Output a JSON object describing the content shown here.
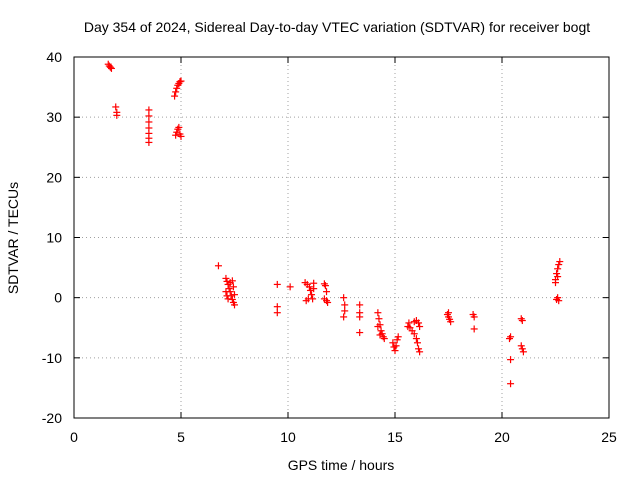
{
  "chart_data": {
    "type": "scatter",
    "title": "Day 354 of 2024, Sidereal Day-to-day VTEC variation (SDTVAR) for receiver bogt",
    "xlabel": "GPS time / hours",
    "ylabel": "SDTVAR / TECUs",
    "xlim": [
      0,
      25
    ],
    "ylim": [
      -20,
      40
    ],
    "xticks": [
      0,
      5,
      10,
      15,
      20,
      25
    ],
    "yticks": [
      -20,
      -10,
      0,
      10,
      20,
      30,
      40
    ],
    "xtick_labels": [
      "0",
      "5",
      "10",
      "15",
      "20",
      "25"
    ],
    "ytick_labels": [
      "-20",
      "-10",
      "0",
      "10",
      "20",
      "30",
      "40"
    ],
    "grid": true,
    "legend": "none",
    "marker": "+",
    "color": "#ff0000",
    "series": [
      {
        "name": "SDTVAR",
        "points": [
          [
            1.6,
            38.8
          ],
          [
            1.65,
            38.5
          ],
          [
            1.7,
            38.3
          ],
          [
            1.75,
            38.1
          ],
          [
            1.95,
            31.7
          ],
          [
            2.0,
            30.8
          ],
          [
            2.0,
            30.3
          ],
          [
            3.5,
            31.2
          ],
          [
            3.5,
            30.2
          ],
          [
            3.5,
            29.2
          ],
          [
            3.5,
            28.2
          ],
          [
            3.5,
            27.3
          ],
          [
            3.5,
            26.5
          ],
          [
            3.5,
            25.8
          ],
          [
            4.7,
            33.5
          ],
          [
            4.75,
            34.2
          ],
          [
            4.8,
            34.8
          ],
          [
            4.85,
            35.3
          ],
          [
            4.9,
            35.6
          ],
          [
            4.95,
            35.9
          ],
          [
            5.0,
            36.0
          ],
          [
            4.75,
            27.0
          ],
          [
            4.8,
            27.5
          ],
          [
            4.85,
            28.0
          ],
          [
            4.9,
            28.3
          ],
          [
            4.95,
            27.2
          ],
          [
            5.0,
            26.8
          ],
          [
            6.75,
            5.3
          ],
          [
            7.1,
            3.2
          ],
          [
            7.15,
            2.7
          ],
          [
            7.2,
            2.2
          ],
          [
            7.25,
            1.5
          ],
          [
            7.3,
            1.0
          ],
          [
            7.35,
            0.3
          ],
          [
            7.4,
            -0.3
          ],
          [
            7.45,
            -0.8
          ],
          [
            7.5,
            -1.2
          ],
          [
            7.1,
            1.0
          ],
          [
            7.15,
            0.3
          ],
          [
            7.2,
            -0.2
          ],
          [
            7.3,
            2.5
          ],
          [
            7.4,
            2.8
          ],
          [
            7.45,
            1.8
          ],
          [
            7.5,
            0.5
          ],
          [
            9.5,
            2.2
          ],
          [
            9.5,
            -1.5
          ],
          [
            9.5,
            -2.5
          ],
          [
            10.1,
            1.8
          ],
          [
            10.8,
            2.5
          ],
          [
            10.9,
            2.2
          ],
          [
            11.0,
            1.8
          ],
          [
            11.05,
            1.2
          ],
          [
            11.1,
            0.5
          ],
          [
            11.15,
            -0.2
          ],
          [
            11.2,
            2.4
          ],
          [
            11.2,
            1.5
          ],
          [
            10.85,
            -0.5
          ],
          [
            10.95,
            -0.2
          ],
          [
            11.7,
            2.3
          ],
          [
            11.75,
            2.0
          ],
          [
            11.8,
            1.0
          ],
          [
            11.7,
            -0.2
          ],
          [
            11.8,
            -0.5
          ],
          [
            11.85,
            -0.8
          ],
          [
            12.6,
            0.0
          ],
          [
            12.65,
            -1.2
          ],
          [
            12.65,
            -2.2
          ],
          [
            12.6,
            -3.2
          ],
          [
            13.35,
            -1.2
          ],
          [
            13.35,
            -2.5
          ],
          [
            13.35,
            -3.2
          ],
          [
            13.35,
            -5.8
          ],
          [
            14.2,
            -2.5
          ],
          [
            14.25,
            -3.5
          ],
          [
            14.3,
            -4.5
          ],
          [
            14.35,
            -5.5
          ],
          [
            14.4,
            -6.0
          ],
          [
            14.45,
            -6.5
          ],
          [
            14.5,
            -6.8
          ],
          [
            14.2,
            -4.8
          ],
          [
            14.3,
            -6.2
          ],
          [
            14.9,
            -7.5
          ],
          [
            14.95,
            -8.2
          ],
          [
            15.0,
            -8.8
          ],
          [
            15.05,
            -8.0
          ],
          [
            15.1,
            -7.0
          ],
          [
            15.15,
            -6.5
          ],
          [
            15.6,
            -4.8
          ],
          [
            15.65,
            -4.2
          ],
          [
            15.7,
            -5.0
          ],
          [
            15.8,
            -5.5
          ],
          [
            15.9,
            -6.0
          ],
          [
            16.0,
            -6.8
          ],
          [
            16.05,
            -7.5
          ],
          [
            16.1,
            -8.5
          ],
          [
            16.15,
            -9.0
          ],
          [
            15.9,
            -4.0
          ],
          [
            16.0,
            -3.8
          ],
          [
            16.1,
            -4.2
          ],
          [
            16.15,
            -4.8
          ],
          [
            17.45,
            -2.8
          ],
          [
            17.5,
            -3.2
          ],
          [
            17.55,
            -3.6
          ],
          [
            17.6,
            -4.0
          ],
          [
            17.5,
            -2.5
          ],
          [
            18.65,
            -2.8
          ],
          [
            18.7,
            -3.2
          ],
          [
            18.7,
            -5.2
          ],
          [
            20.35,
            -6.8
          ],
          [
            20.4,
            -6.5
          ],
          [
            20.4,
            -10.3
          ],
          [
            20.4,
            -14.3
          ],
          [
            20.9,
            -3.5
          ],
          [
            20.95,
            -3.8
          ],
          [
            20.9,
            -8.0
          ],
          [
            20.95,
            -8.5
          ],
          [
            21.0,
            -9.0
          ],
          [
            22.5,
            3.0
          ],
          [
            22.55,
            4.0
          ],
          [
            22.6,
            4.8
          ],
          [
            22.65,
            5.5
          ],
          [
            22.7,
            6.0
          ],
          [
            22.5,
            2.5
          ],
          [
            22.6,
            3.5
          ],
          [
            22.55,
            -0.3
          ],
          [
            22.6,
            0.0
          ],
          [
            22.65,
            -0.5
          ]
        ]
      }
    ]
  }
}
